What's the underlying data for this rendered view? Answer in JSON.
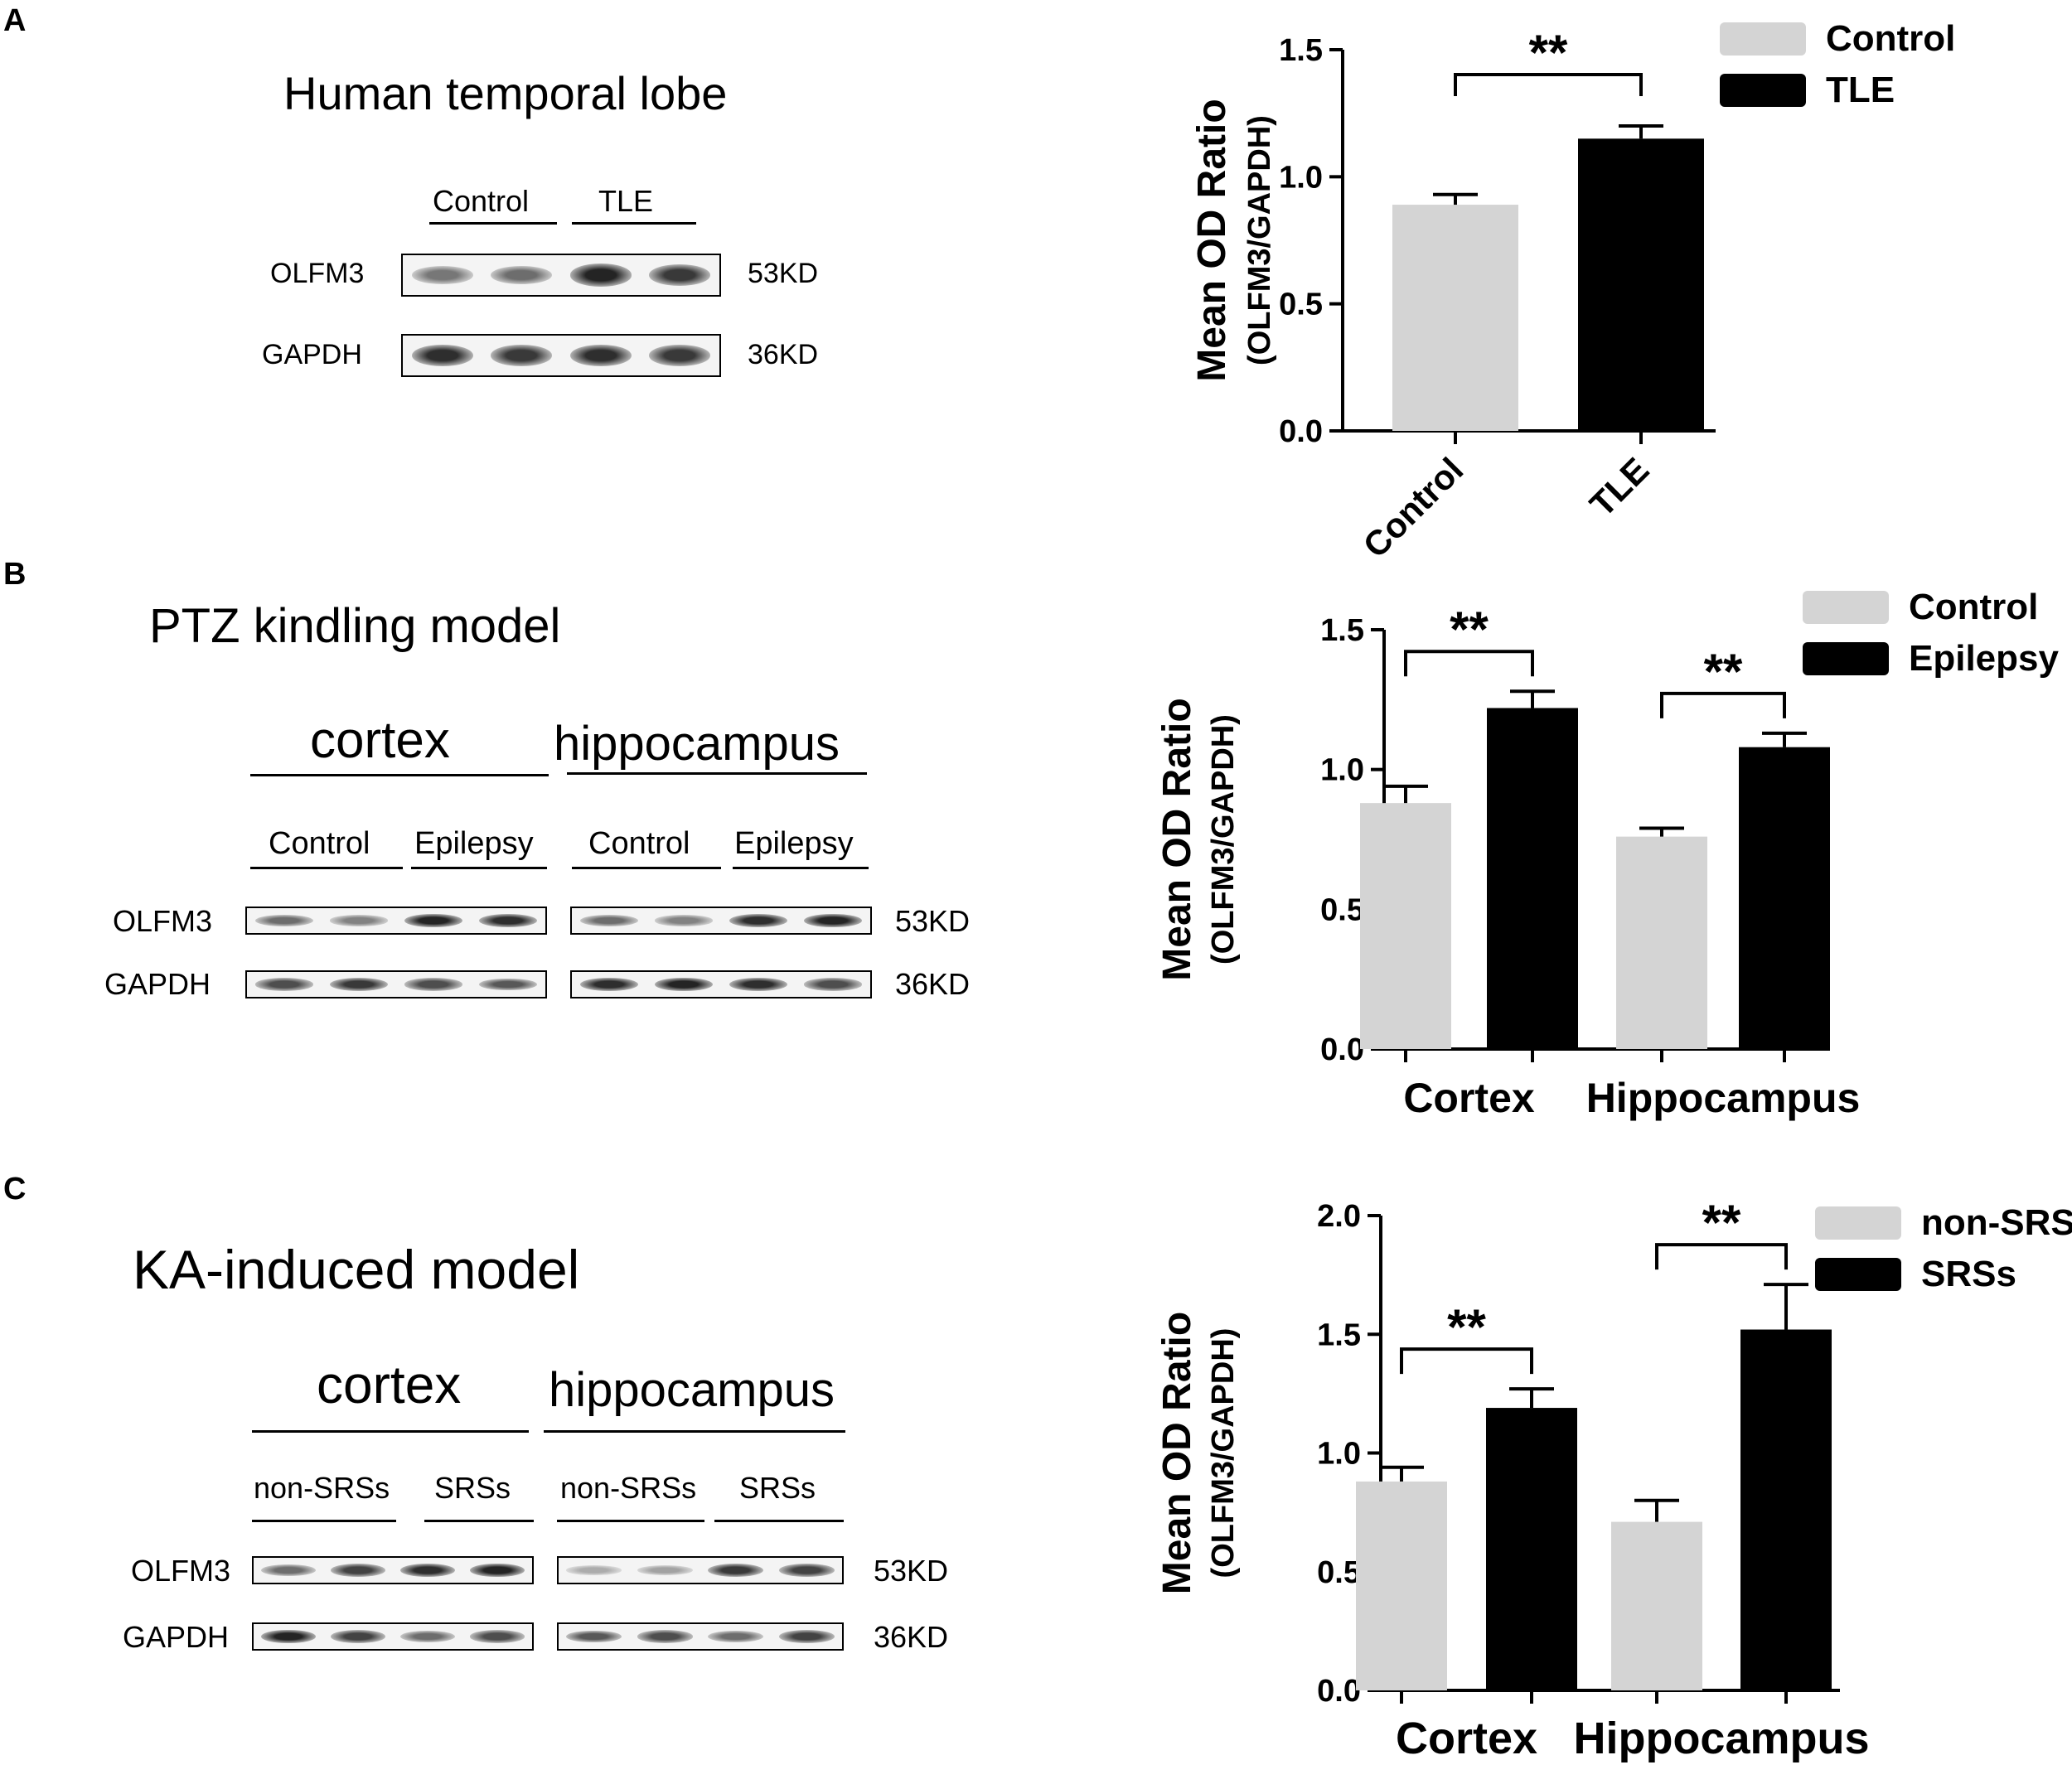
{
  "panels": [
    {
      "letter": "A",
      "blot": {
        "title": "Human temporal lobe",
        "regions": [],
        "group_labels": [
          "Control",
          "TLE"
        ],
        "rows": [
          {
            "label": "OLFM3",
            "weight": "53KD",
            "bands": [
              0.55,
              0.6,
              0.95,
              0.85
            ]
          },
          {
            "label": "GAPDH",
            "weight": "36KD",
            "bands": [
              0.9,
              0.85,
              0.9,
              0.85
            ]
          }
        ]
      }
    },
    {
      "letter": "B",
      "blot": {
        "title": "PTZ kindling model",
        "regions": [
          "cortex",
          "hippocampus"
        ],
        "group_labels": [
          "Control",
          "Epilepsy",
          "Control",
          "Epilepsy"
        ],
        "rows": [
          {
            "label": "OLFM3",
            "weight": "53KD",
            "bands": [
              0.6,
              0.5,
              0.95,
              0.9,
              0.6,
              0.5,
              0.9,
              0.95
            ]
          },
          {
            "label": "GAPDH",
            "weight": "36KD",
            "bands": [
              0.75,
              0.85,
              0.75,
              0.7,
              0.9,
              0.95,
              0.9,
              0.75
            ]
          }
        ]
      }
    },
    {
      "letter": "C",
      "blot": {
        "title": "KA-induced model",
        "regions": [
          "cortex",
          "hippocampus"
        ],
        "group_labels": [
          "non-SRSs",
          "SRSs",
          "non-SRSs",
          "SRSs"
        ],
        "rows": [
          {
            "label": "OLFM3",
            "weight": "53KD",
            "bands": [
              0.6,
              0.8,
              0.9,
              0.95,
              0.3,
              0.35,
              0.85,
              0.8
            ]
          },
          {
            "label": "GAPDH",
            "weight": "36KD",
            "bands": [
              0.95,
              0.8,
              0.6,
              0.75,
              0.7,
              0.75,
              0.6,
              0.8
            ]
          }
        ]
      }
    }
  ],
  "chart_data": [
    {
      "type": "bar",
      "categories": [
        "Control",
        "TLE"
      ],
      "series": [
        {
          "name": "Control",
          "color": "#d4d4d4",
          "values": [
            0.89,
            null
          ],
          "errors": [
            0.04,
            null
          ]
        },
        {
          "name": "TLE",
          "color": "#000000",
          "values": [
            null,
            1.15
          ],
          "errors": [
            null,
            0.05
          ]
        }
      ],
      "ylabel": "Mean OD Ratio",
      "ylabel2": "(OLFM3/GAPDH)",
      "ylim": [
        0,
        1.5
      ],
      "yticks": [
        "0.0",
        "0.5",
        "1.0",
        "1.5"
      ],
      "significance": [
        {
          "label": "**",
          "between": [
            "Control",
            "TLE"
          ]
        }
      ],
      "legend": "top-right",
      "xtick_rotation": -45,
      "grid": false
    },
    {
      "type": "bar",
      "categories": [
        "Cortex",
        "Hippocampus"
      ],
      "series": [
        {
          "name": "Control",
          "color": "#d4d4d4",
          "values": [
            0.88,
            0.76
          ],
          "errors": [
            0.06,
            0.03
          ]
        },
        {
          "name": "Epilepsy",
          "color": "#000000",
          "values": [
            1.22,
            1.08
          ],
          "errors": [
            0.06,
            0.05
          ]
        }
      ],
      "ylabel": "Mean OD Ratio",
      "ylabel2": "(OLFM3/GAPDH)",
      "ylim": [
        0,
        1.5
      ],
      "yticks": [
        "0.0",
        "0.5",
        "1.0",
        "1.5"
      ],
      "significance": [
        {
          "label": "**",
          "category": "Cortex"
        },
        {
          "label": "**",
          "category": "Hippocampus"
        }
      ],
      "legend": "top-right",
      "grid": false
    },
    {
      "type": "bar",
      "categories": [
        "Cortex",
        "Hippocampus"
      ],
      "series": [
        {
          "name": "non-SRSs",
          "color": "#d4d4d4",
          "values": [
            0.88,
            0.71
          ],
          "errors": [
            0.06,
            0.09
          ]
        },
        {
          "name": "SRSs",
          "color": "#000000",
          "values": [
            1.19,
            1.52
          ],
          "errors": [
            0.08,
            0.19
          ]
        }
      ],
      "ylabel": "Mean OD Ratio",
      "ylabel2": "(OLFM3/GAPDH)",
      "ylim": [
        0,
        2.0
      ],
      "yticks": [
        "0.0",
        "0.5",
        "1.0",
        "1.5",
        "2.0"
      ],
      "significance": [
        {
          "label": "**",
          "category": "Cortex"
        },
        {
          "label": "**",
          "category": "Hippocampus"
        }
      ],
      "legend": "top-right",
      "grid": false
    }
  ]
}
